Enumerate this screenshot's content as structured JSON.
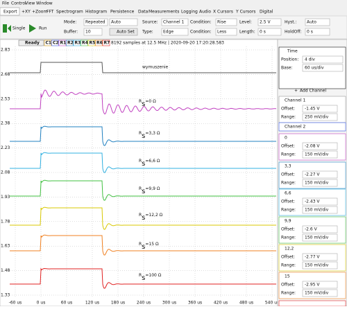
{
  "menu": [
    "File",
    "Control",
    "View",
    "Window"
  ],
  "tabs": [
    "Export",
    "+XY",
    "+Zoom",
    "FFT",
    "Spectrogram",
    "Histogram",
    "Persistence",
    "Data",
    "Measurements",
    "Logging",
    "Audio",
    "X Cursors",
    "Y Cursors",
    "Digital"
  ],
  "toolbar": {
    "single": "Single",
    "run": "Run",
    "mode_label": "Mode:",
    "mode": "Repeated",
    "mode2": "Auto",
    "source_label": "Source:",
    "source": "Channel 1",
    "condition_label": "Condition:",
    "condition": "Rise",
    "level_label": "Level:",
    "level": "2.5 V",
    "hyst_label": "Hyst.:",
    "hyst": "Auto",
    "buffer_label": "Buffer:",
    "buffer": "10",
    "autoset": "Auto Set",
    "type_label": "Type:",
    "type": "Edge",
    "condition2_label": "Condition:",
    "condition2": "Less",
    "length_label": "Length:",
    "length": "0 s",
    "holdoff_label": "HoldOff:",
    "holdoff": "0 s"
  },
  "plot": {
    "status": "Ready",
    "channels": [
      "C1",
      "C2",
      "R1",
      "R2",
      "R3",
      "R4",
      "R5",
      "R6",
      "R7"
    ],
    "info": "8192 samples at 12.5 MHz | 2020-09-20 17:20:28.583",
    "y_labels": [
      "2.83",
      "2.68",
      "2.53",
      "2.38",
      "2.23",
      "2.08",
      "1.93",
      "1.78",
      "1.63",
      "1.48",
      "1.33"
    ],
    "x_labels": [
      "-60 us",
      "0 us",
      "60 us",
      "120 us",
      "180 us",
      "240 us",
      "300 us",
      "360 us",
      "420 us",
      "480 us",
      "540 us"
    ],
    "trace_labels": [
      {
        "text": "wymuszenie"
      },
      {
        "main": "R",
        "sub": "s",
        "rest": "=0 Ω"
      },
      {
        "main": "R",
        "sub": "s",
        "rest": "=3,3 Ω"
      },
      {
        "main": "R",
        "sub": "s",
        "rest": "=6,6 Ω"
      },
      {
        "main": "R",
        "sub": "s",
        "rest": "=9,9 Ω"
      },
      {
        "main": "R",
        "sub": "s",
        "rest": "=12,2 Ω"
      },
      {
        "main": "R",
        "sub": "s",
        "rest": "=15 Ω"
      },
      {
        "main": "R",
        "sub": "s",
        "rest": "=100 Ω"
      }
    ]
  },
  "panel": {
    "time": {
      "title": "Time",
      "position_label": "Position:",
      "position": "4 div",
      "base_label": "Base:",
      "base": "60 us/div"
    },
    "add_channel": "Add Channel",
    "offset_label": "Offset:",
    "range_label": "Range:",
    "channels": [
      {
        "name": "Channel 1",
        "offset": "-1.45 V",
        "range": "250 mV/div"
      },
      {
        "name": "Channel 2"
      },
      {
        "name": "0",
        "offset": "-2.08 V",
        "range": "150 mV/div"
      },
      {
        "name": "3,3",
        "offset": "-2.27 V",
        "range": "150 mV/div"
      },
      {
        "name": "6,6",
        "offset": "-2.43 V",
        "range": "150 mV/div"
      },
      {
        "name": "9,9",
        "offset": "-2.6 V",
        "range": "150 mV/div"
      },
      {
        "name": "12,2",
        "offset": "-2.77 V",
        "range": "150 mV/div"
      },
      {
        "name": "15",
        "offset": "-2.95 V",
        "range": "150 mV/div"
      }
    ]
  }
}
